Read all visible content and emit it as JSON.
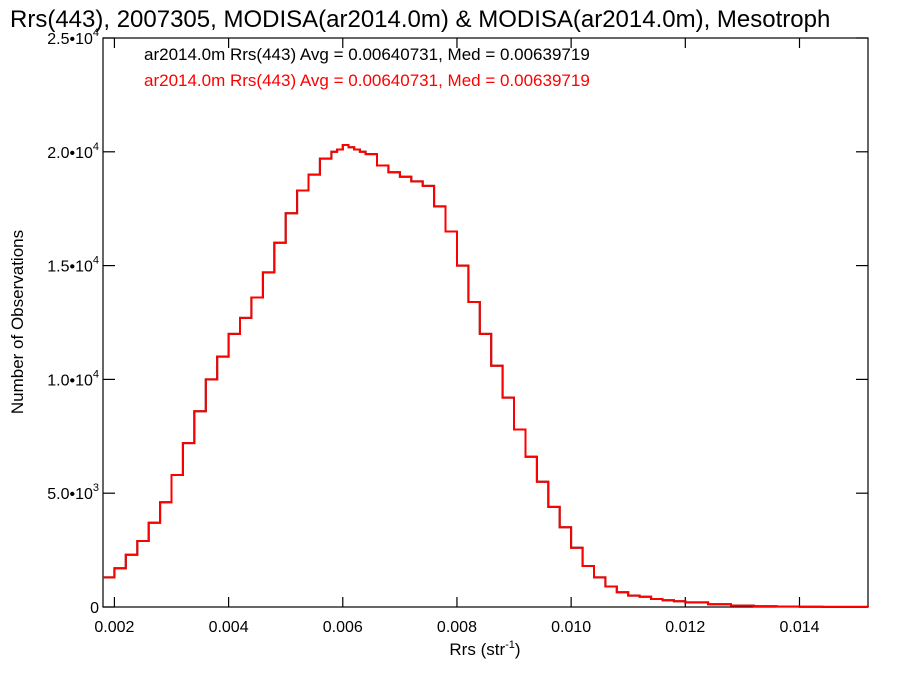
{
  "chart_data": {
    "type": "line",
    "title": "Rrs(443), 2007305, MODISA(ar2014.0m) & MODISA(ar2014.0m), Mesotroph",
    "xlabel_base": "Rrs (str",
    "xlabel_exp": "-1",
    "xlabel_close": ")",
    "ylabel": "Number of Observations",
    "xlim": [
      0.0018,
      0.0152
    ],
    "ylim": [
      0,
      25000
    ],
    "x_ticks": [
      {
        "value": 0.002,
        "label": "0.002"
      },
      {
        "value": 0.004,
        "label": "0.004"
      },
      {
        "value": 0.006,
        "label": "0.006"
      },
      {
        "value": 0.008,
        "label": "0.008"
      },
      {
        "value": 0.01,
        "label": "0.010"
      },
      {
        "value": 0.012,
        "label": "0.012"
      },
      {
        "value": 0.014,
        "label": "0.014"
      }
    ],
    "y_ticks": [
      {
        "value": 0,
        "mant": "0",
        "exp": ""
      },
      {
        "value": 5000,
        "mant": "5.0•10",
        "exp": "3"
      },
      {
        "value": 10000,
        "mant": "1.0•10",
        "exp": "4"
      },
      {
        "value": 15000,
        "mant": "1.5•10",
        "exp": "4"
      },
      {
        "value": 20000,
        "mant": "2.0•10",
        "exp": "4"
      },
      {
        "value": 25000,
        "mant": "2.5•10",
        "exp": "4"
      }
    ],
    "grid": false,
    "legend_position": "top-left",
    "series": [
      {
        "name": "ar2014.0m Rrs(443) Avg = 0.00640731, Med = 0.00639719",
        "color": "#000000",
        "x": [
          0.0018,
          0.002,
          0.0022,
          0.0024,
          0.0026,
          0.0028,
          0.003,
          0.0032,
          0.0034,
          0.0036,
          0.0038,
          0.004,
          0.0042,
          0.0044,
          0.0046,
          0.0048,
          0.005,
          0.0052,
          0.0054,
          0.0056,
          0.0058,
          0.0059,
          0.006,
          0.0061,
          0.0062,
          0.0063,
          0.0064,
          0.0066,
          0.0068,
          0.007,
          0.0072,
          0.0074,
          0.0076,
          0.0078,
          0.008,
          0.0082,
          0.0084,
          0.0086,
          0.0088,
          0.009,
          0.0092,
          0.0094,
          0.0096,
          0.0098,
          0.01,
          0.0102,
          0.0104,
          0.0106,
          0.0108,
          0.011,
          0.0112,
          0.0114,
          0.0116,
          0.0118,
          0.012,
          0.0124,
          0.0128,
          0.0132,
          0.0136,
          0.014,
          0.0144,
          0.0148,
          0.0152
        ],
        "y": [
          1300,
          1700,
          2300,
          2900,
          3700,
          4600,
          5800,
          7200,
          8600,
          10000,
          11000,
          12000,
          12700,
          13600,
          14700,
          16000,
          17300,
          18300,
          19000,
          19700,
          20000,
          20100,
          20300,
          20200,
          20100,
          20000,
          19900,
          19400,
          19100,
          18900,
          18700,
          18500,
          17600,
          16500,
          15000,
          13400,
          12000,
          10600,
          9200,
          7800,
          6600,
          5500,
          4400,
          3500,
          2600,
          1800,
          1300,
          900,
          650,
          500,
          450,
          350,
          300,
          250,
          200,
          120,
          60,
          30,
          20,
          10,
          5,
          3,
          0
        ]
      },
      {
        "name": "ar2014.0m Rrs(443) Avg = 0.00640731, Med = 0.00639719",
        "color": "#ff0000",
        "x": [
          0.0018,
          0.002,
          0.0022,
          0.0024,
          0.0026,
          0.0028,
          0.003,
          0.0032,
          0.0034,
          0.0036,
          0.0038,
          0.004,
          0.0042,
          0.0044,
          0.0046,
          0.0048,
          0.005,
          0.0052,
          0.0054,
          0.0056,
          0.0058,
          0.0059,
          0.006,
          0.0061,
          0.0062,
          0.0063,
          0.0064,
          0.0066,
          0.0068,
          0.007,
          0.0072,
          0.0074,
          0.0076,
          0.0078,
          0.008,
          0.0082,
          0.0084,
          0.0086,
          0.0088,
          0.009,
          0.0092,
          0.0094,
          0.0096,
          0.0098,
          0.01,
          0.0102,
          0.0104,
          0.0106,
          0.0108,
          0.011,
          0.0112,
          0.0114,
          0.0116,
          0.0118,
          0.012,
          0.0124,
          0.0128,
          0.0132,
          0.0136,
          0.014,
          0.0144,
          0.0148,
          0.0152
        ],
        "y": [
          1300,
          1700,
          2300,
          2900,
          3700,
          4600,
          5800,
          7200,
          8600,
          10000,
          11000,
          12000,
          12700,
          13600,
          14700,
          16000,
          17300,
          18300,
          19000,
          19700,
          20000,
          20100,
          20300,
          20200,
          20100,
          20000,
          19900,
          19400,
          19100,
          18900,
          18700,
          18500,
          17600,
          16500,
          15000,
          13400,
          12000,
          10600,
          9200,
          7800,
          6600,
          5500,
          4400,
          3500,
          2600,
          1800,
          1300,
          900,
          650,
          500,
          450,
          350,
          300,
          250,
          200,
          120,
          60,
          30,
          20,
          10,
          5,
          3,
          0
        ]
      }
    ]
  }
}
